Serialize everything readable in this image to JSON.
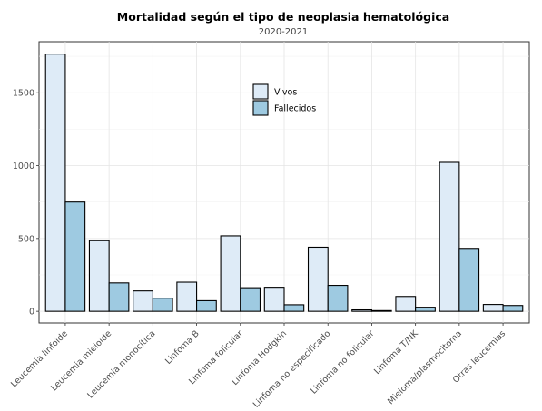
{
  "chart_data": {
    "type": "bar",
    "title": "Mortalidad según el tipo de neoplasia hematológica",
    "subtitle": "2020-2021",
    "xlabel": "",
    "ylabel": "",
    "ylim": [
      -80,
      1850
    ],
    "yticks": [
      0,
      500,
      1000,
      1500
    ],
    "grid": true,
    "legend_position": "top-center",
    "categories": [
      "Leucemia linfoide",
      "Leucemia mieloide",
      "Leucemia monocítica",
      "Linfoma B",
      "Linfoma folicular",
      "Linfoma Hodgkin",
      "Linfoma no especificado",
      "Linfoma no folicular",
      "Linfoma T/NK",
      "Mieloma/plasmocitoma",
      "Otras leucemias"
    ],
    "series": [
      {
        "name": "Vivos",
        "color": "#deebf7",
        "values": [
          1765,
          485,
          140,
          200,
          518,
          165,
          440,
          10,
          102,
          1022,
          47
        ]
      },
      {
        "name": "Fallecidos",
        "color": "#9ecae1",
        "values": [
          750,
          195,
          90,
          73,
          162,
          45,
          178,
          5,
          28,
          432,
          40
        ]
      }
    ]
  }
}
